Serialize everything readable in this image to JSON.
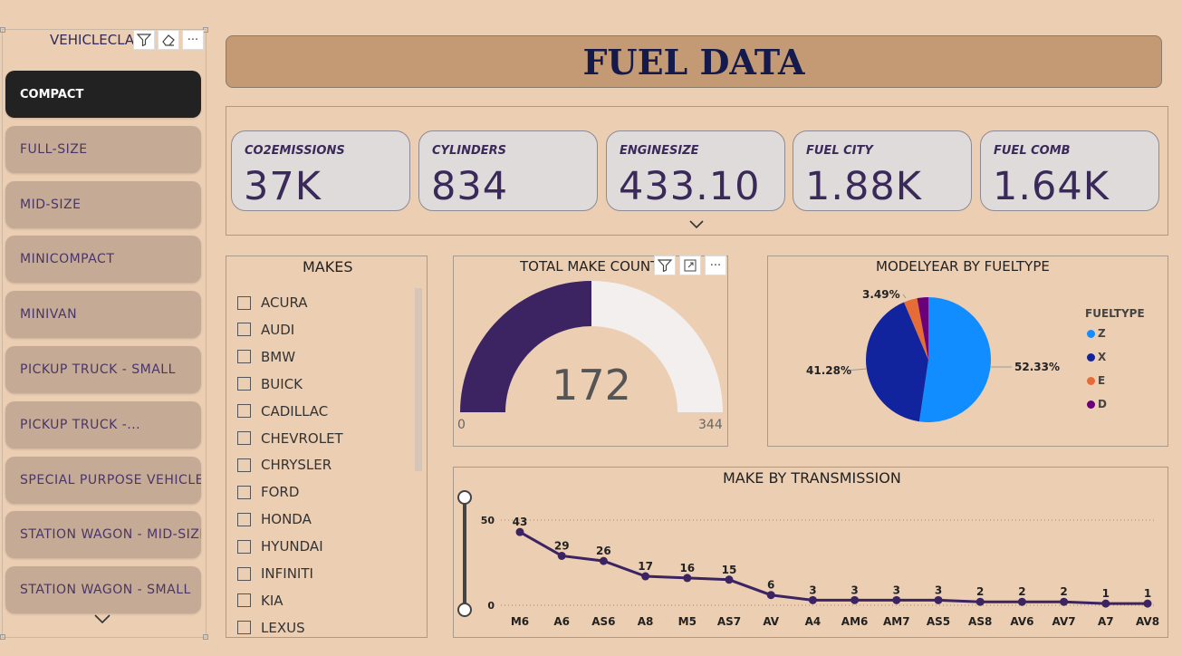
{
  "slicer": {
    "title": "VEHICLECLASS",
    "items": [
      {
        "label": "COMPACT",
        "selected": true
      },
      {
        "label": "FULL-SIZE",
        "selected": false
      },
      {
        "label": "MID-SIZE",
        "selected": false
      },
      {
        "label": "MINICOMPACT",
        "selected": false
      },
      {
        "label": "MINIVAN",
        "selected": false
      },
      {
        "label": "PICKUP TRUCK - SMALL",
        "selected": false
      },
      {
        "label": "PICKUP TRUCK -...",
        "selected": false
      },
      {
        "label": "SPECIAL PURPOSE VEHICLE",
        "selected": false
      },
      {
        "label": "STATION WAGON - MID-SIZE",
        "selected": false
      },
      {
        "label": "STATION WAGON - SMALL",
        "selected": false
      }
    ]
  },
  "header": {
    "title": "FUEL DATA"
  },
  "cards": [
    {
      "label": "CO2EMISSIONS",
      "value": "37K"
    },
    {
      "label": "CYLINDERS",
      "value": "834"
    },
    {
      "label": "ENGINESIZE",
      "value": "433.10"
    },
    {
      "label": "FUEL CITY",
      "value": "1.88K"
    },
    {
      "label": "FUEL COMB",
      "value": "1.64K"
    }
  ],
  "makes": {
    "title": "MAKES",
    "items": [
      "ACURA",
      "AUDI",
      "BMW",
      "BUICK",
      "CADILLAC",
      "CHEVROLET",
      "CHRYSLER",
      "FORD",
      "HONDA",
      "HYUNDAI",
      "INFINITI",
      "KIA",
      "LEXUS"
    ]
  },
  "gauge": {
    "title": "TOTAL MAKE COUNT",
    "value": "172",
    "min": "0",
    "max": "344",
    "fill_fraction": 0.5,
    "colors": {
      "fill": "#3b2461",
      "track": "#f3efef"
    }
  },
  "pie": {
    "title": "MODELYEAR BY FUELTYPE",
    "legend_title": "FUELTYPE",
    "slices": [
      {
        "name": "Z",
        "value": 52.33,
        "label": "52.33%",
        "color": "#118dff"
      },
      {
        "name": "X",
        "value": 41.28,
        "label": "41.28%",
        "color": "#12239e"
      },
      {
        "name": "E",
        "value": 3.49,
        "label": "3.49%",
        "color": "#e66c37"
      },
      {
        "name": "D",
        "value": 2.9,
        "label": "",
        "color": "#6b007b"
      }
    ]
  },
  "chart_data": {
    "type": "line",
    "title": "MAKE BY TRANSMISSION",
    "categories": [
      "M6",
      "A6",
      "AS6",
      "A8",
      "M5",
      "AS7",
      "AV",
      "A4",
      "AM6",
      "AM7",
      "AS5",
      "AS8",
      "AV6",
      "AV7",
      "A7",
      "AV8"
    ],
    "values": [
      43,
      29,
      26,
      17,
      16,
      15,
      6,
      3,
      3,
      3,
      3,
      2,
      2,
      2,
      1,
      1
    ],
    "yticks": [
      "50",
      "0"
    ],
    "ylim": [
      0,
      50
    ],
    "color": "#3b2461"
  }
}
